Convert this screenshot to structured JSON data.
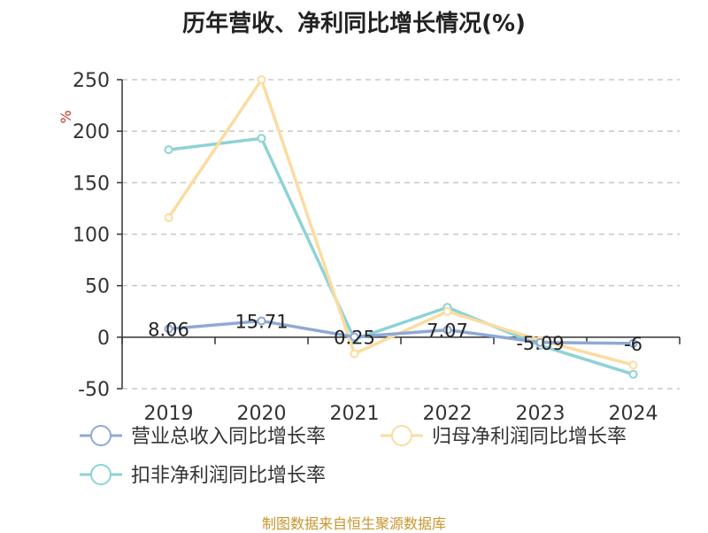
{
  "chart_data": {
    "type": "line",
    "title": "历年营收、净利同比增长情况(%)",
    "ylabel": "%",
    "xlabel": "",
    "categories": [
      "2019",
      "2020",
      "2021",
      "2022",
      "2023",
      "2024"
    ],
    "ylim": [
      -50,
      250
    ],
    "yticks": [
      -50,
      0,
      50,
      100,
      150,
      200,
      250
    ],
    "grid": true,
    "legend_position": "bottom-left",
    "series": [
      {
        "name": "营业总收入同比增长率",
        "color": "#8fa9d4",
        "values": [
          8.06,
          15.71,
          0.25,
          7.07,
          -5.09,
          -6
        ],
        "labels": [
          "8.06",
          "15.71",
          "0.25",
          "7.07",
          "-5.09",
          "-6"
        ]
      },
      {
        "name": "归母净利润同比增长率",
        "color": "#fbdca0",
        "values": [
          116,
          250,
          -16,
          25,
          -3,
          -27
        ]
      },
      {
        "name": "扣非净利润同比增长率",
        "color": "#8dd3d5",
        "values": [
          182,
          193,
          -2,
          29,
          -8,
          -36
        ]
      }
    ]
  },
  "source": "制图数据来自恒生聚源数据库"
}
